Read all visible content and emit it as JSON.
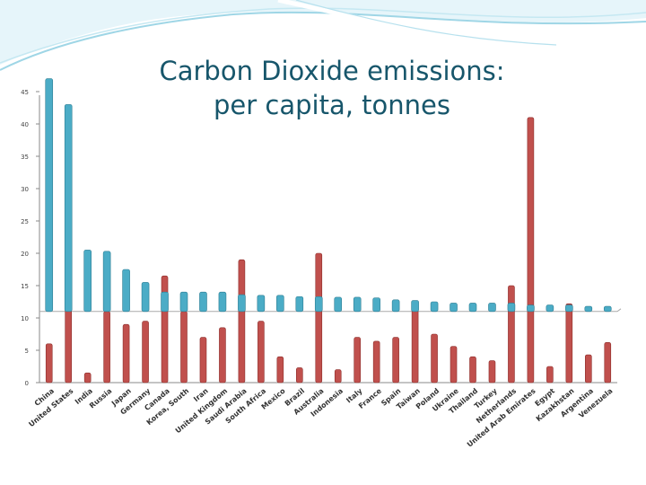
{
  "slide": {
    "title_line1": "Carbon Dioxide emissions:",
    "title_line2": "per capita, tonnes"
  },
  "colors": {
    "title": "#17566b",
    "blue_series": "#4bacc6",
    "red_series": "#c0504d",
    "deco": "#9fd6e6"
  },
  "chart_data": {
    "type": "bar",
    "title": "Carbon Dioxide emissions: per capita, tonnes",
    "ylim": [
      0,
      45
    ],
    "yticks": [
      0,
      5,
      10,
      15,
      20,
      25,
      30,
      35,
      40,
      45
    ],
    "grid": false,
    "categories": [
      "China",
      "United States",
      "India",
      "Russia",
      "Japan",
      "Germany",
      "Canada",
      "Korea, South",
      "Iran",
      "United Kingdom",
      "Saudi Arabia",
      "South Africa",
      "Mexico",
      "Brazil",
      "Australia",
      "Indonesia",
      "Italy",
      "France",
      "Spain",
      "Taiwan",
      "Poland",
      "Ukraine",
      "Thailand",
      "Turkey",
      "Netherlands",
      "United Arab Emirates",
      "Egypt",
      "Kazakhstan",
      "Argentina",
      "Venezuela"
    ],
    "series": [
      {
        "color": "#4bacc6",
        "baseline": 11,
        "values": [
          47,
          43,
          20.5,
          20.3,
          17.5,
          15.5,
          14,
          14,
          14,
          14,
          13.6,
          13.5,
          13.5,
          13.3,
          13.3,
          13.2,
          13.2,
          13.1,
          12.8,
          12.7,
          12.5,
          12.3,
          12.3,
          12.3,
          12.3,
          12,
          12,
          12,
          11.8,
          11.8
        ]
      },
      {
        "color": "#c0504d",
        "baseline": 0,
        "values": [
          6,
          18,
          1.5,
          11,
          9,
          9.5,
          16.5,
          11,
          7,
          8.5,
          19,
          9.5,
          4,
          2.3,
          20,
          2,
          7,
          6.4,
          7,
          12,
          7.5,
          5.6,
          4,
          3.4,
          15,
          41,
          2.5,
          12.2,
          4.3,
          6.2
        ]
      }
    ]
  }
}
